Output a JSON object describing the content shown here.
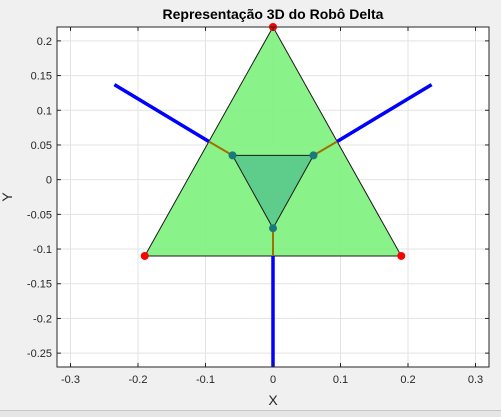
{
  "chart_data": {
    "type": "line",
    "title": "Representação 3D do Robô Delta",
    "xlabel": "X",
    "ylabel": "Y",
    "xlim": [
      -0.32,
      0.32
    ],
    "ylim": [
      -0.27,
      0.22
    ],
    "xticks": [
      -0.3,
      -0.2,
      -0.1,
      0,
      0.1,
      0.2,
      0.3
    ],
    "xtick_labels": [
      "-0.3",
      "-0.2",
      "-0.1",
      "0",
      "0.1",
      "0.2",
      "0.3"
    ],
    "yticks": [
      -0.25,
      -0.2,
      -0.15,
      -0.1,
      -0.05,
      0,
      0.05,
      0.1,
      0.15,
      0.2
    ],
    "ytick_labels": [
      "-0.25",
      "-0.2",
      "-0.15",
      "-0.1",
      "-0.05",
      "0",
      "0.05",
      "0.1",
      "0.15",
      "0.2"
    ],
    "grid": true,
    "base_triangle": {
      "x": [
        0,
        -0.19,
        0.19
      ],
      "y": [
        0.22,
        -0.11,
        -0.11
      ],
      "fill_color": "#7ff27f",
      "vertex_color": "#ff0000"
    },
    "effector_triangle": {
      "x": [
        -0.06,
        0.06,
        0
      ],
      "y": [
        0.035,
        0.035,
        -0.07
      ],
      "fill_color": "#5cc98a",
      "joint_color": "#1a7a7a"
    },
    "arms": [
      {
        "x": [
          -0.235,
          -0.095
        ],
        "y": [
          0.137,
          0.055
        ]
      },
      {
        "x": [
          0.235,
          0.095
        ],
        "y": [
          0.137,
          0.055
        ]
      },
      {
        "x": [
          0,
          0
        ],
        "y": [
          -0.27,
          -0.11
        ]
      }
    ],
    "arm_color": "#0000ff",
    "links": [
      {
        "x": [
          -0.095,
          -0.06
        ],
        "y": [
          0.055,
          0.035
        ]
      },
      {
        "x": [
          0.095,
          0.06
        ],
        "y": [
          0.055,
          0.035
        ]
      },
      {
        "x": [
          0,
          0
        ],
        "y": [
          -0.11,
          -0.07
        ]
      }
    ],
    "link_color": "#a07000"
  }
}
